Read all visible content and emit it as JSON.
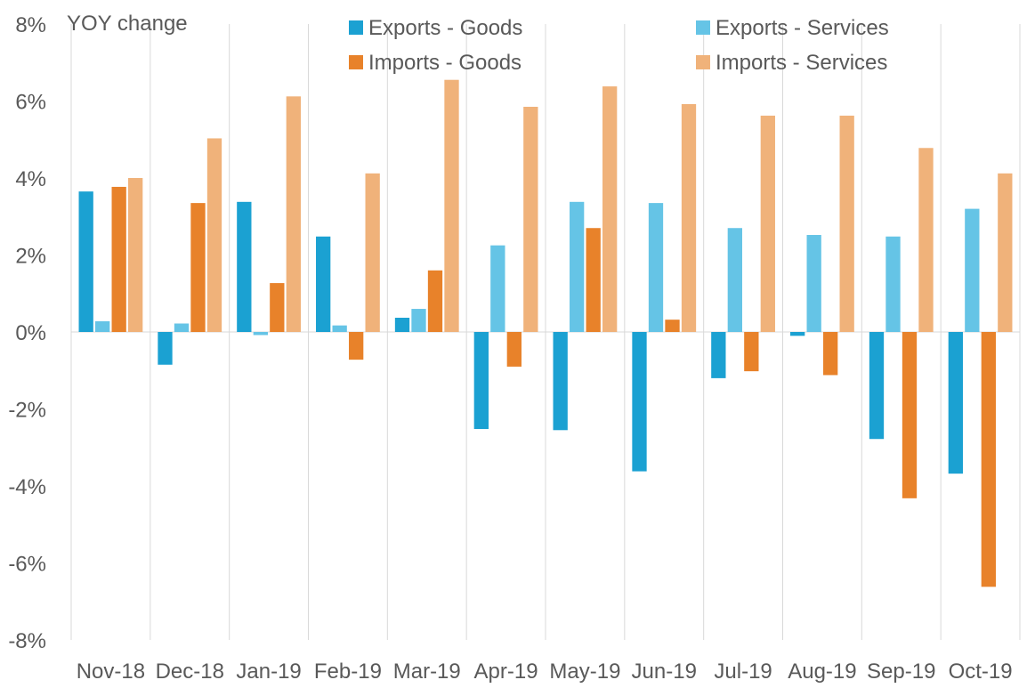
{
  "chart_data": {
    "type": "bar",
    "ylabel": "YOY change",
    "ylim": [
      -8,
      8
    ],
    "yticks": [
      8,
      6,
      4,
      2,
      0,
      -2,
      -4,
      -6,
      -8
    ],
    "ytick_labels": [
      "8%",
      "6%",
      "4%",
      "2%",
      "0%",
      "-2%",
      "-4%",
      "-6%",
      "-8%"
    ],
    "categories": [
      "Nov-18",
      "Dec-18",
      "Jan-19",
      "Feb-19",
      "Mar-19",
      "Apr-19",
      "May-19",
      "Jun-19",
      "Jul-19",
      "Aug-19",
      "Sep-19",
      "Oct-19"
    ],
    "grid": "vertical separators between categories",
    "legend_position": "top",
    "series": [
      {
        "name": "Exports - Goods",
        "color": "#1ba1d2",
        "values": [
          3.65,
          -0.85,
          3.38,
          2.48,
          0.37,
          -2.52,
          -2.55,
          -3.62,
          -1.2,
          -0.1,
          -2.78,
          -3.68
        ]
      },
      {
        "name": "Exports - Services",
        "color": "#65c4e6",
        "values": [
          0.28,
          0.22,
          -0.08,
          0.17,
          0.6,
          2.25,
          3.38,
          3.35,
          2.7,
          2.52,
          2.48,
          3.2
        ]
      },
      {
        "name": "Imports - Goods",
        "color": "#e8822a",
        "values": [
          3.77,
          3.35,
          1.27,
          -0.72,
          1.6,
          -0.9,
          2.7,
          0.32,
          -1.02,
          -1.12,
          -4.32,
          -6.62
        ]
      },
      {
        "name": "Imports - Services",
        "color": "#f0b27a",
        "values": [
          4.0,
          5.03,
          6.12,
          4.12,
          6.55,
          5.85,
          6.38,
          5.92,
          5.62,
          5.62,
          4.78,
          4.12
        ]
      }
    ]
  }
}
